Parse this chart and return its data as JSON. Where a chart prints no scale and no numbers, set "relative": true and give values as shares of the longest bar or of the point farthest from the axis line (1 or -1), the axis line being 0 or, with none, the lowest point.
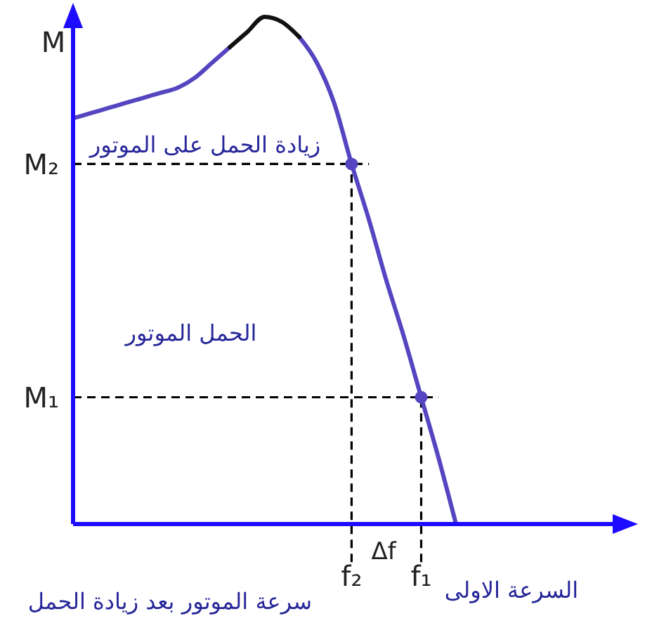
{
  "chart_data": {
    "type": "line",
    "relative": true,
    "ylabel": "M",
    "categories": [
      null,
      null,
      null,
      null,
      null,
      null,
      null,
      null,
      null,
      null,
      null,
      null,
      null,
      null,
      null,
      null,
      "f₂",
      null,
      null,
      null,
      "f₁",
      null,
      null,
      null,
      null,
      null,
      null,
      null,
      null,
      null,
      null,
      null
    ],
    "series": [
      {
        "color": "#5545c0",
        "values": [
          0.8,
          0.81,
          0.82,
          0.83,
          0.84,
          0.85,
          0.86,
          0.88,
          0.91,
          0.94,
          null,
          null,
          null,
          0.96,
          0.91,
          0.83,
          0.71,
          0.6,
          0.48,
          0.37,
          0.25,
          0.13,
          0,
          null,
          null,
          null,
          null,
          null,
          null,
          null,
          null,
          null
        ]
      },
      {
        "color": "#111111",
        "values": [
          null,
          null,
          null,
          null,
          null,
          null,
          null,
          null,
          null,
          0.94,
          0.97,
          1,
          0.99,
          0.96,
          null,
          null,
          null,
          null,
          null,
          null,
          null,
          null,
          null,
          null,
          null,
          null,
          null,
          null,
          null,
          null,
          null,
          null
        ]
      },
      {
        "type": "scatter",
        "color": "#5545c0",
        "x": [
          "f₂",
          "f₁"
        ],
        "values": [
          0.71,
          0.25
        ]
      }
    ],
    "ref_lines": [
      {
        "axis": "y",
        "value": 0.71,
        "label": "M₂",
        "color": "#000000",
        "line_style": "dashed"
      },
      {
        "axis": "y",
        "value": 0.25,
        "label": "M₁",
        "color": "#000000",
        "line_style": "dashed"
      },
      {
        "axis": "x",
        "value": "f₂",
        "color": "#000000",
        "line_style": "dashed"
      },
      {
        "axis": "x",
        "value": "f₁",
        "color": "#000000",
        "line_style": "dashed"
      }
    ],
    "annotations": [
      "زيادة الحمل على الموتور",
      "الحمل الموتور",
      "سرعة الموتور بعد زيادة الحمل",
      "السرعة الاولى",
      "Δf"
    ]
  }
}
